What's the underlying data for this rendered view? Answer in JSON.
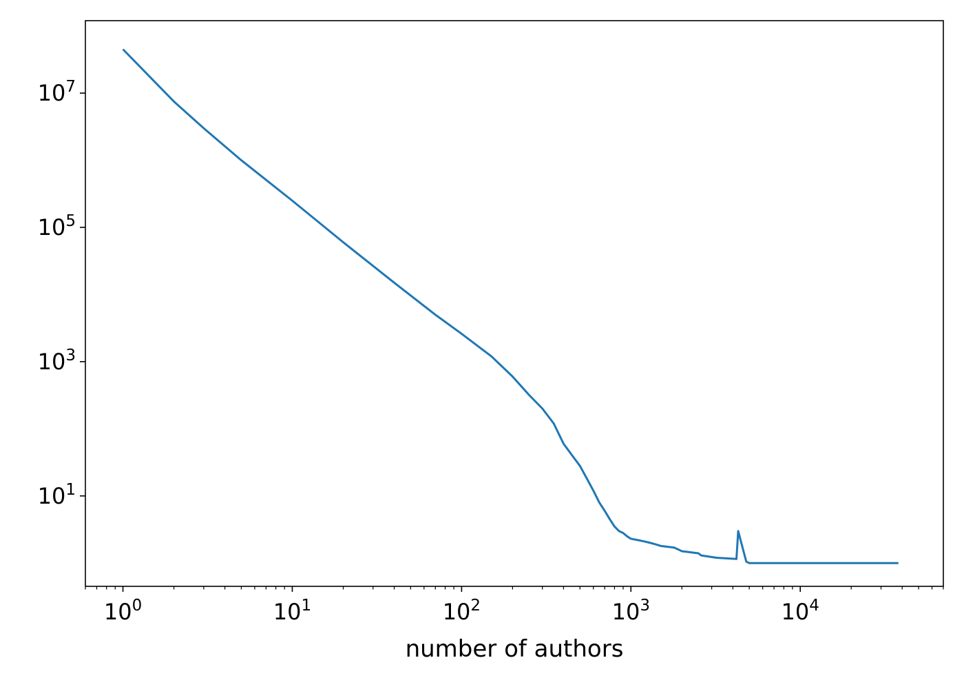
{
  "chart_data": {
    "type": "line",
    "title": "",
    "xlabel": "number of authors",
    "ylabel": "",
    "xscale": "log",
    "yscale": "log",
    "xlim": [
      0.6,
      70000
    ],
    "ylim": [
      0.45,
      120000000
    ],
    "grid": false,
    "legend": "none",
    "line_color": "#1f77b4",
    "x_ticks": [
      {
        "value": 1,
        "base": "10",
        "exp": "0"
      },
      {
        "value": 10,
        "base": "10",
        "exp": "1"
      },
      {
        "value": 100,
        "base": "10",
        "exp": "2"
      },
      {
        "value": 1000,
        "base": "10",
        "exp": "3"
      },
      {
        "value": 10000,
        "base": "10",
        "exp": "4"
      }
    ],
    "y_ticks": [
      {
        "value": 10,
        "base": "10",
        "exp": "1"
      },
      {
        "value": 1000,
        "base": "10",
        "exp": "3"
      },
      {
        "value": 100000,
        "base": "10",
        "exp": "5"
      },
      {
        "value": 10000000,
        "base": "10",
        "exp": "7"
      }
    ],
    "series": [
      {
        "x": [
          1,
          2,
          3,
          5,
          10,
          20,
          40,
          70,
          100,
          150,
          200,
          250,
          300,
          350,
          400,
          450,
          500,
          550,
          600,
          650,
          700,
          750,
          800,
          850,
          900,
          950,
          1000,
          1100,
          1200,
          1300,
          1400,
          1500,
          1800,
          1900,
          2000,
          2500,
          2600,
          3200,
          4200,
          4300,
          4800,
          5000,
          7000,
          7100,
          14000,
          14100,
          38000
        ],
        "y": [
          45000000,
          7500000,
          3000000,
          1000000,
          250000,
          60000,
          15000,
          5000,
          2600,
          1200,
          600,
          320,
          200,
          120,
          60,
          40,
          28,
          18,
          12,
          8,
          6,
          4.5,
          3.5,
          3,
          2.8,
          2.5,
          2.3,
          2.2,
          2.1,
          2,
          1.9,
          1.8,
          1.7,
          1.6,
          1.5,
          1.4,
          1.3,
          1.2,
          1.15,
          3,
          1.05,
          1,
          1,
          1,
          1,
          1,
          1
        ]
      }
    ]
  }
}
